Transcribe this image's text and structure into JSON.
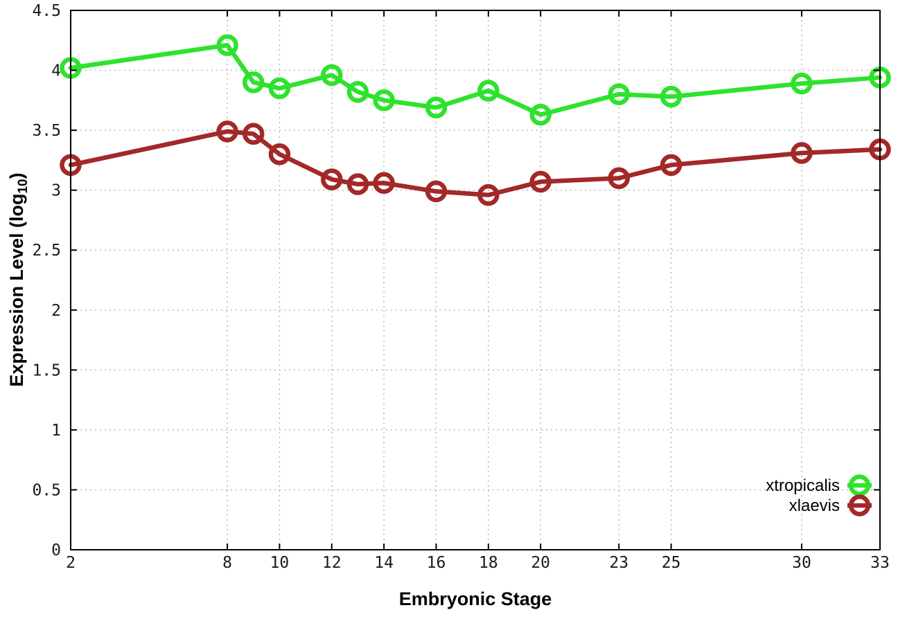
{
  "chart_data": {
    "type": "line",
    "title": "",
    "xlabel": "Embryonic Stage",
    "ylabel": {
      "prefix": "Expression Level (log",
      "sub": "10",
      "suffix": ")"
    },
    "x": [
      2,
      8,
      9,
      10,
      12,
      13,
      14,
      16,
      18,
      20,
      23,
      25,
      30,
      33
    ],
    "series": [
      {
        "name": "xtropicalis",
        "color": "#2ee22e",
        "values": [
          4.02,
          4.21,
          3.9,
          3.85,
          3.96,
          3.82,
          3.75,
          3.69,
          3.83,
          3.63,
          3.8,
          3.78,
          3.89,
          3.94
        ]
      },
      {
        "name": "xlaevis",
        "color": "#a32828",
        "values": [
          3.21,
          3.49,
          3.47,
          3.3,
          3.09,
          3.05,
          3.06,
          2.99,
          2.96,
          3.07,
          3.1,
          3.21,
          3.31,
          3.34
        ]
      }
    ],
    "xlim": [
      2,
      33
    ],
    "ylim": [
      0,
      4.5
    ],
    "xticks": [
      2,
      8,
      10,
      12,
      14,
      16,
      18,
      20,
      23,
      25,
      30,
      33
    ],
    "yticks": [
      0,
      0.5,
      1,
      1.5,
      2,
      2.5,
      3,
      3.5,
      4,
      4.5
    ],
    "ytick_labels": [
      "0",
      "0.5",
      "1",
      "1.5",
      "2",
      "2.5",
      "3",
      "3.5",
      "4",
      "4.5"
    ],
    "grid": true,
    "legend_position": "right-inside",
    "marker": "open-circle",
    "colors": {
      "grid": "#b8b8b8",
      "axis": "#000000",
      "background": "#ffffff",
      "tick_text": "#1a1a1a"
    }
  }
}
